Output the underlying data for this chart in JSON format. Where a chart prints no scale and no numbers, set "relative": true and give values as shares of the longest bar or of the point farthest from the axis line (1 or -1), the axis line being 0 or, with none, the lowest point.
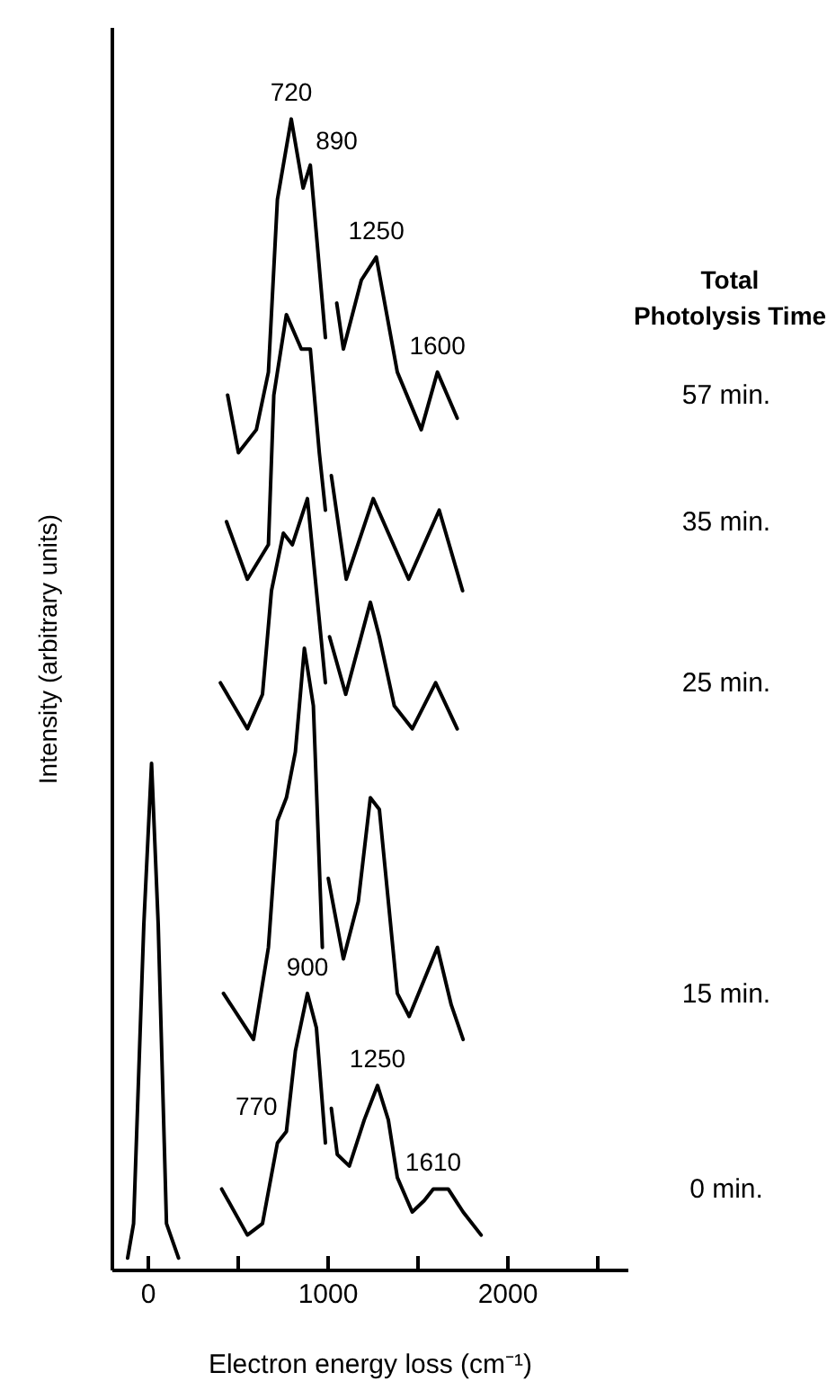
{
  "chart_data": {
    "type": "line",
    "relative": true,
    "xlabel": "Electron energy loss (cm⁻¹)",
    "ylabel": "Intensity (arbitrary units)",
    "legend_title": "Total Photolysis Time",
    "xlim": [
      -200,
      2670
    ],
    "xticks": [
      0,
      {
        "value": 500,
        "label": null
      },
      1000,
      {
        "value": 1500,
        "label": null
      },
      2000,
      {
        "value": 2500,
        "label": null
      }
    ],
    "grid": false,
    "marker": "none",
    "line_style": "solid",
    "series": [
      {
        "name": "57 min.",
        "color": "#000000",
        "x": [
          446,
          506,
          606,
          673,
          723,
          800,
          866,
          906,
          923,
          990,
          1000,
          1053,
          1090,
          1190,
          1273,
          1390,
          1523,
          1613,
          1723
        ],
        "values": [
          0.76,
          0.71,
          0.73,
          0.78,
          0.93,
          1.0,
          0.94,
          0.96,
          0.93,
          0.81,
          null,
          0.84,
          0.8,
          0.86,
          0.88,
          0.78,
          0.73,
          0.78,
          0.74
        ]
      },
      {
        "name": "35 min.",
        "color": "#000000",
        "x": [
          440,
          556,
          673,
          703,
          773,
          856,
          906,
          956,
          990,
          1005,
          1023,
          1106,
          1256,
          1453,
          1623,
          1753
        ],
        "values": [
          0.65,
          0.6,
          0.63,
          0.76,
          0.83,
          0.8,
          0.8,
          0.71,
          0.66,
          null,
          0.69,
          0.6,
          0.67,
          0.6,
          0.66,
          0.59
        ]
      },
      {
        "name": "25 min.",
        "color": "#000000",
        "x": [
          406,
          556,
          640,
          690,
          756,
          806,
          890,
          940,
          990,
          1000,
          1013,
          1103,
          1240,
          1290,
          1373,
          1473,
          1603,
          1723
        ],
        "values": [
          0.51,
          0.47,
          0.5,
          0.59,
          0.64,
          0.63,
          0.67,
          0.59,
          0.51,
          null,
          0.55,
          0.5,
          0.58,
          0.55,
          0.49,
          0.47,
          0.51,
          0.47
        ]
      },
      {
        "name": "15 min.",
        "color": "#000000",
        "x": [
          423,
          590,
          673,
          723,
          773,
          823,
          873,
          923,
          973,
          990,
          1006,
          1090,
          1173,
          1240,
          1290,
          1340,
          1390,
          1456,
          1613,
          1690,
          1756
        ],
        "values": [
          0.24,
          0.2,
          0.28,
          0.39,
          0.41,
          0.45,
          0.54,
          0.49,
          0.28,
          null,
          0.34,
          0.27,
          0.32,
          0.41,
          0.4,
          0.32,
          0.24,
          0.22,
          0.28,
          0.23,
          0.2
        ]
      },
      {
        "name": "0 min.",
        "color": "#000000",
        "x": [
          413,
          556,
          640,
          723,
          773,
          823,
          890,
          940,
          990,
          1005,
          1023,
          1056,
          1123,
          1206,
          1280,
          1340,
          1390,
          1473,
          1540,
          1590,
          1673,
          1756,
          1856
        ],
        "values": [
          0.07,
          0.03,
          0.04,
          0.11,
          0.12,
          0.19,
          0.24,
          0.21,
          0.11,
          null,
          0.14,
          0.1,
          0.09,
          0.13,
          0.16,
          0.13,
          0.08,
          0.05,
          0.06,
          0.07,
          0.07,
          0.05,
          0.03
        ]
      },
      {
        "color": "#000000",
        "x": [
          -110,
          -77,
          -20,
          23,
          60,
          106,
          173
        ],
        "values": [
          0.01,
          0.04,
          0.3,
          0.44,
          0.3,
          0.04,
          0.01
        ]
      }
    ],
    "annotations": [
      {
        "text": "720",
        "x": 800,
        "y": 1.0
      },
      {
        "text": "890",
        "x": 906,
        "y": 0.96
      },
      {
        "text": "1250",
        "x": 1273,
        "y": 0.88
      },
      {
        "text": "1600",
        "x": 1613,
        "y": 0.78
      },
      {
        "text": "770",
        "x": 773,
        "y": 0.12
      },
      {
        "text": "900",
        "x": 890,
        "y": 0.24
      },
      {
        "text": "1250",
        "x": 1280,
        "y": 0.16
      },
      {
        "text": "1610",
        "x": 1590,
        "y": 0.07
      }
    ]
  }
}
